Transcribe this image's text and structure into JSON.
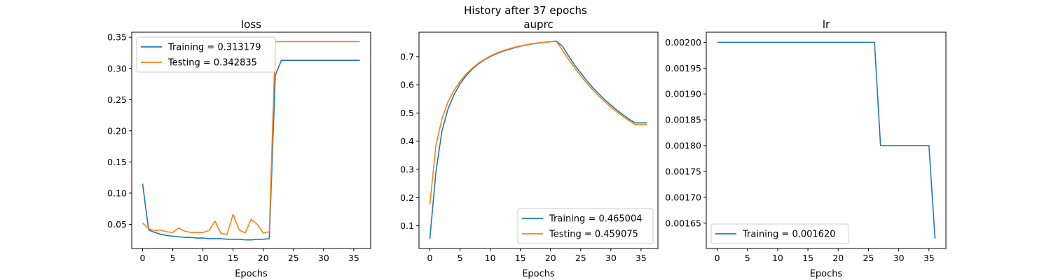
{
  "suptitle": "History after 37 epochs",
  "chart_data": [
    {
      "type": "line",
      "title": "loss",
      "xlabel": "Epochs",
      "ylabel": "",
      "xlim": [
        -1.8,
        37.8
      ],
      "ylim": [
        0.0112,
        0.3581
      ],
      "xticks": [
        0,
        5,
        10,
        15,
        20,
        25,
        30,
        35
      ],
      "xtick_labels": [
        "0",
        "5",
        "10",
        "15",
        "20",
        "25",
        "30",
        "35"
      ],
      "yticks": [
        0.05,
        0.1,
        0.15,
        0.2,
        0.25,
        0.3,
        0.35
      ],
      "ytick_labels": [
        "0.05",
        "0.10",
        "0.15",
        "0.20",
        "0.25",
        "0.30",
        "0.35"
      ],
      "legend_loc": "upper-left",
      "series": [
        {
          "name": "Training = 0.313179",
          "color": "#1f77b4",
          "x": [
            0,
            1,
            2,
            3,
            4,
            5,
            6,
            7,
            8,
            9,
            10,
            11,
            12,
            13,
            14,
            15,
            16,
            17,
            18,
            19,
            20,
            21,
            22,
            23,
            24,
            25,
            26,
            27,
            28,
            29,
            30,
            31,
            32,
            33,
            34,
            35,
            36
          ],
          "y": [
            0.115,
            0.041,
            0.037,
            0.034,
            0.032,
            0.031,
            0.03,
            0.029,
            0.029,
            0.028,
            0.028,
            0.027,
            0.027,
            0.027,
            0.026,
            0.026,
            0.026,
            0.025,
            0.025,
            0.026,
            0.026,
            0.027,
            0.289,
            0.313,
            0.313,
            0.313,
            0.313,
            0.313,
            0.313,
            0.313,
            0.313,
            0.313,
            0.313,
            0.313,
            0.313,
            0.313,
            0.313
          ]
        },
        {
          "name": "Testing = 0.342835",
          "color": "#ff7f0e",
          "x": [
            0,
            1,
            2,
            3,
            4,
            5,
            6,
            7,
            8,
            9,
            10,
            11,
            12,
            13,
            14,
            15,
            16,
            17,
            18,
            19,
            20,
            21,
            22,
            23,
            24,
            25,
            26,
            27,
            28,
            29,
            30,
            31,
            32,
            33,
            34,
            35,
            36
          ],
          "y": [
            0.052,
            0.043,
            0.04,
            0.041,
            0.038,
            0.037,
            0.044,
            0.039,
            0.037,
            0.037,
            0.037,
            0.04,
            0.055,
            0.035,
            0.034,
            0.066,
            0.041,
            0.036,
            0.058,
            0.05,
            0.036,
            0.038,
            0.343,
            0.343,
            0.343,
            0.343,
            0.343,
            0.343,
            0.343,
            0.343,
            0.343,
            0.343,
            0.343,
            0.343,
            0.343,
            0.343,
            0.343
          ]
        }
      ]
    },
    {
      "type": "line",
      "title": "auprc",
      "xlabel": "Epochs",
      "ylabel": "",
      "xlim": [
        -1.8,
        37.8
      ],
      "ylim": [
        0.0195,
        0.7866
      ],
      "xticks": [
        0,
        5,
        10,
        15,
        20,
        25,
        30,
        35
      ],
      "xtick_labels": [
        "0",
        "5",
        "10",
        "15",
        "20",
        "25",
        "30",
        "35"
      ],
      "yticks": [
        0.1,
        0.2,
        0.3,
        0.4,
        0.5,
        0.6,
        0.7
      ],
      "ytick_labels": [
        "0.1",
        "0.2",
        "0.3",
        "0.4",
        "0.5",
        "0.6",
        "0.7"
      ],
      "legend_loc": "lower-right",
      "series": [
        {
          "name": "Training = 0.465004",
          "color": "#1f77b4",
          "x": [
            0,
            1,
            2,
            3,
            4,
            5,
            6,
            7,
            8,
            9,
            10,
            11,
            12,
            13,
            14,
            15,
            16,
            17,
            18,
            19,
            20,
            21,
            22,
            23,
            24,
            25,
            26,
            27,
            28,
            29,
            30,
            31,
            32,
            33,
            34,
            35,
            36
          ],
          "y": [
            0.054,
            0.29,
            0.435,
            0.514,
            0.565,
            0.603,
            0.632,
            0.655,
            0.673,
            0.688,
            0.7,
            0.71,
            0.718,
            0.725,
            0.731,
            0.737,
            0.741,
            0.745,
            0.748,
            0.751,
            0.753,
            0.755,
            0.736,
            0.702,
            0.67,
            0.642,
            0.615,
            0.59,
            0.568,
            0.547,
            0.528,
            0.51,
            0.494,
            0.479,
            0.465,
            0.465,
            0.465
          ]
        },
        {
          "name": "Testing = 0.459075",
          "color": "#ff7f0e",
          "x": [
            0,
            1,
            2,
            3,
            4,
            5,
            6,
            7,
            8,
            9,
            10,
            11,
            12,
            13,
            14,
            15,
            16,
            17,
            18,
            19,
            20,
            21,
            22,
            23,
            24,
            25,
            26,
            27,
            28,
            29,
            30,
            31,
            32,
            33,
            34,
            35,
            36
          ],
          "y": [
            0.175,
            0.385,
            0.478,
            0.54,
            0.58,
            0.612,
            0.638,
            0.658,
            0.676,
            0.69,
            0.702,
            0.712,
            0.72,
            0.727,
            0.733,
            0.738,
            0.742,
            0.746,
            0.749,
            0.751,
            0.753,
            0.754,
            0.722,
            0.69,
            0.66,
            0.632,
            0.606,
            0.582,
            0.56,
            0.54,
            0.521,
            0.504,
            0.488,
            0.473,
            0.459,
            0.459,
            0.459
          ]
        }
      ]
    },
    {
      "type": "line",
      "title": "lr",
      "xlabel": "Epochs",
      "ylabel": "",
      "xlim": [
        -1.8,
        37.8
      ],
      "ylim": [
        0.001601,
        0.0020195
      ],
      "xticks": [
        0,
        5,
        10,
        15,
        20,
        25,
        30,
        35
      ],
      "xtick_labels": [
        "0",
        "5",
        "10",
        "15",
        "20",
        "25",
        "30",
        "35"
      ],
      "yticks": [
        0.00165,
        0.0017,
        0.00175,
        0.0018,
        0.00185,
        0.0019,
        0.00195,
        0.002
      ],
      "ytick_labels": [
        "0.00165",
        "0.00170",
        "0.00175",
        "0.00180",
        "0.00185",
        "0.00190",
        "0.00195",
        "0.00200"
      ],
      "legend_loc": "lower-left",
      "series": [
        {
          "name": "Training = 0.001620",
          "color": "#1f77b4",
          "x": [
            0,
            1,
            2,
            3,
            4,
            5,
            6,
            7,
            8,
            9,
            10,
            11,
            12,
            13,
            14,
            15,
            16,
            17,
            18,
            19,
            20,
            21,
            22,
            23,
            24,
            25,
            26,
            27,
            28,
            29,
            30,
            31,
            32,
            33,
            34,
            35,
            36
          ],
          "y": [
            0.002,
            0.002,
            0.002,
            0.002,
            0.002,
            0.002,
            0.002,
            0.002,
            0.002,
            0.002,
            0.002,
            0.002,
            0.002,
            0.002,
            0.002,
            0.002,
            0.002,
            0.002,
            0.002,
            0.002,
            0.002,
            0.002,
            0.002,
            0.002,
            0.002,
            0.002,
            0.002,
            0.0018,
            0.0018,
            0.0018,
            0.0018,
            0.0018,
            0.0018,
            0.0018,
            0.0018,
            0.0018,
            0.00162
          ]
        }
      ]
    }
  ]
}
